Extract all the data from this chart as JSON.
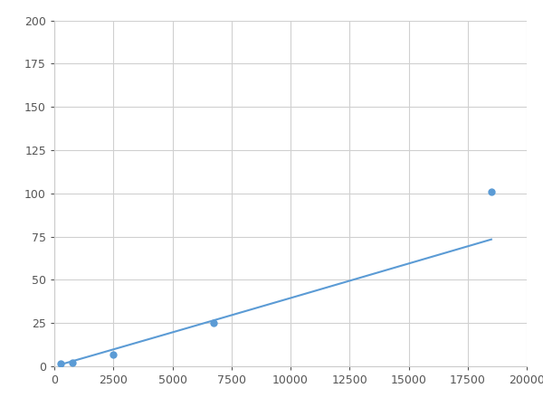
{
  "x": [
    250,
    750,
    2500,
    6750,
    18500
  ],
  "y": [
    1.5,
    2.0,
    7.0,
    25.0,
    101.0
  ],
  "xlim": [
    0,
    20000
  ],
  "ylim": [
    0,
    200
  ],
  "xticks": [
    0,
    2500,
    5000,
    7500,
    10000,
    12500,
    15000,
    17500,
    20000
  ],
  "yticks": [
    0,
    25,
    50,
    75,
    100,
    125,
    150,
    175,
    200
  ],
  "line_color": "#5B9BD5",
  "marker_color": "#5B9BD5",
  "marker_size": 6,
  "linewidth": 1.5,
  "background_color": "#ffffff",
  "grid_color": "#d0d0d0"
}
